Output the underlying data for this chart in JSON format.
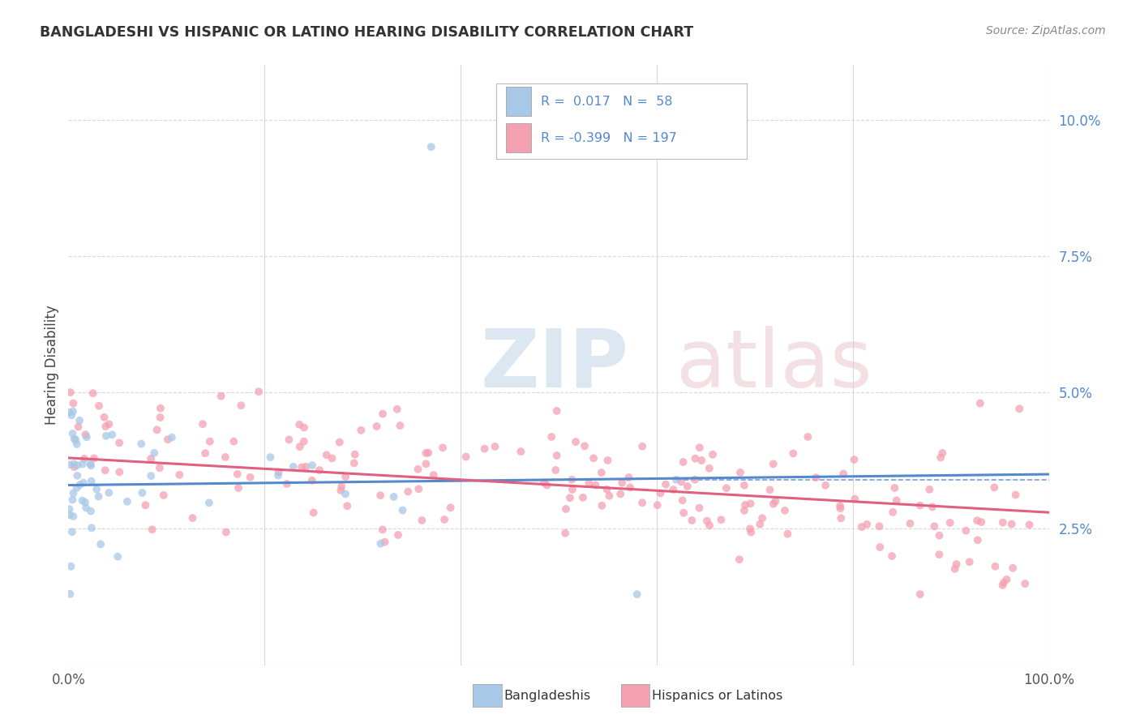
{
  "title": "BANGLADESHI VS HISPANIC OR LATINO HEARING DISABILITY CORRELATION CHART",
  "source": "Source: ZipAtlas.com",
  "ylabel": "Hearing Disability",
  "xlim": [
    0.0,
    1.0
  ],
  "ylim": [
    0.0,
    0.11
  ],
  "yticks": [
    0.025,
    0.05,
    0.075,
    0.1
  ],
  "ytick_labels": [
    "2.5%",
    "5.0%",
    "7.5%",
    "10.0%"
  ],
  "xticks": [
    0.0,
    0.2,
    0.4,
    0.6,
    0.8,
    1.0
  ],
  "xtick_labels": [
    "0.0%",
    "",
    "",
    "",
    "",
    "100.0%"
  ],
  "bg_color": "#ffffff",
  "blue_color": "#a8c8e8",
  "pink_color": "#f4a0b0",
  "blue_line_color": "#5588cc",
  "pink_line_color": "#e06080",
  "legend_blue_R": " 0.017",
  "legend_blue_N": "58",
  "legend_pink_R": "-0.399",
  "legend_pink_N": "197",
  "blue_R": 0.017,
  "pink_R": -0.399,
  "tick_color": "#5588cc",
  "grid_color": "#d8d8d8",
  "title_color": "#333333",
  "source_color": "#888888",
  "dashed_line_y": 0.034,
  "dashed_line_xmin": 0.62,
  "dashed_line_xmax": 1.0
}
